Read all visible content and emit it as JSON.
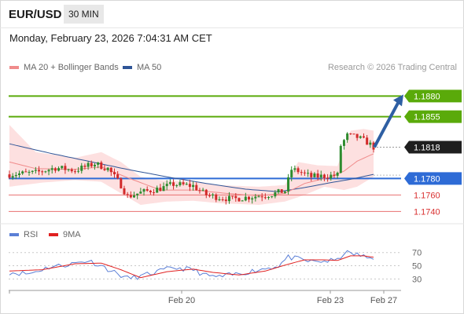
{
  "header": {
    "pair": "EUR/USD",
    "timeframe": "30 MIN",
    "datetime": "Monday, February 23, 2026 7:04:31 AM CET"
  },
  "legend": {
    "ma20": "MA 20 + Bollinger Bands",
    "ma50": "MA 50",
    "credit": "Research © 2026 Trading Central",
    "rsi": "RSI",
    "rsi_ma": "9MA"
  },
  "colors": {
    "ma20": "#f08b8b",
    "ma50": "#2f5597",
    "resistance": "#5aaa0a",
    "pivot": "#2e6bd6",
    "support": "#e87070",
    "candle_up": "#2e8b2e",
    "candle_down": "#d22a2a",
    "band_fill": "#fde0e0",
    "arrow": "#2e5fa3",
    "rsi": "#5b7fd6",
    "rsi_ma": "#e02020"
  },
  "chart_data": {
    "type": "candlestick",
    "ylim": [
      1.1728,
      1.1906
    ],
    "current_price": "1.1818",
    "levels": [
      {
        "kind": "resistance",
        "value": 1.188,
        "label": "1.1880"
      },
      {
        "kind": "resistance",
        "value": 1.1855,
        "label": "1.1855"
      },
      {
        "kind": "pivot",
        "value": 1.178,
        "label": "1.1780"
      },
      {
        "kind": "support",
        "value": 1.176,
        "label": "1.1760"
      },
      {
        "kind": "support",
        "value": 1.174,
        "label": "1.1740"
      }
    ],
    "x_ticks": [
      "Feb 20",
      "Feb 23",
      "Feb 27"
    ],
    "n_candles": 112,
    "price_anchors": [
      [
        0,
        1.1785
      ],
      [
        8,
        1.1787
      ],
      [
        14,
        1.1793
      ],
      [
        20,
        1.179
      ],
      [
        26,
        1.1798
      ],
      [
        30,
        1.1792
      ],
      [
        34,
        1.1772
      ],
      [
        36,
        1.1758
      ],
      [
        40,
        1.1763
      ],
      [
        46,
        1.1768
      ],
      [
        50,
        1.1773
      ],
      [
        56,
        1.1771
      ],
      [
        60,
        1.176
      ],
      [
        64,
        1.1757
      ],
      [
        68,
        1.1755
      ],
      [
        74,
        1.1758
      ],
      [
        80,
        1.1761
      ],
      [
        84,
        1.1765
      ],
      [
        86,
        1.1791
      ],
      [
        88,
        1.1789
      ],
      [
        92,
        1.1782
      ],
      [
        96,
        1.1783
      ],
      [
        100,
        1.1784
      ],
      [
        101,
        1.182
      ],
      [
        103,
        1.1832
      ],
      [
        106,
        1.183
      ],
      [
        109,
        1.1824
      ],
      [
        111,
        1.1818
      ]
    ],
    "bollinger_upper_anchors": [
      [
        0,
        1.1845
      ],
      [
        8,
        1.1812
      ],
      [
        20,
        1.1805
      ],
      [
        28,
        1.1812
      ],
      [
        34,
        1.18
      ],
      [
        40,
        1.1782
      ],
      [
        46,
        1.1778
      ],
      [
        56,
        1.1776
      ],
      [
        64,
        1.1772
      ],
      [
        76,
        1.177
      ],
      [
        84,
        1.1772
      ],
      [
        88,
        1.18
      ],
      [
        94,
        1.1796
      ],
      [
        100,
        1.1795
      ],
      [
        104,
        1.1838
      ],
      [
        108,
        1.184
      ],
      [
        111,
        1.1838
      ]
    ],
    "bollinger_lower_anchors": [
      [
        0,
        1.177
      ],
      [
        10,
        1.1775
      ],
      [
        20,
        1.1778
      ],
      [
        28,
        1.1776
      ],
      [
        34,
        1.1762
      ],
      [
        40,
        1.1748
      ],
      [
        48,
        1.1752
      ],
      [
        56,
        1.1753
      ],
      [
        64,
        1.175
      ],
      [
        76,
        1.1748
      ],
      [
        84,
        1.1752
      ],
      [
        90,
        1.176
      ],
      [
        96,
        1.177
      ],
      [
        102,
        1.1766
      ],
      [
        106,
        1.177
      ],
      [
        111,
        1.1782
      ]
    ],
    "ma20_anchors": [
      [
        0,
        1.18
      ],
      [
        8,
        1.1792
      ],
      [
        20,
        1.1791
      ],
      [
        28,
        1.1794
      ],
      [
        36,
        1.1781
      ],
      [
        46,
        1.1766
      ],
      [
        56,
        1.1766
      ],
      [
        66,
        1.1762
      ],
      [
        76,
        1.1759
      ],
      [
        84,
        1.1762
      ],
      [
        90,
        1.1774
      ],
      [
        98,
        1.1782
      ],
      [
        102,
        1.1789
      ],
      [
        106,
        1.1801
      ],
      [
        111,
        1.181
      ]
    ],
    "ma50_anchors": [
      [
        0,
        1.1822
      ],
      [
        12,
        1.1811
      ],
      [
        24,
        1.1801
      ],
      [
        36,
        1.1791
      ],
      [
        48,
        1.1782
      ],
      [
        60,
        1.1774
      ],
      [
        72,
        1.1767
      ],
      [
        82,
        1.1764
      ],
      [
        90,
        1.1769
      ],
      [
        98,
        1.1775
      ],
      [
        104,
        1.1779
      ],
      [
        111,
        1.1785
      ]
    ],
    "projection": {
      "from": 1.1818,
      "to": 1.188
    },
    "rsi": {
      "ylim": [
        15,
        78
      ],
      "levels": [
        70,
        50,
        30
      ],
      "tick_labels": [
        "70",
        "50",
        "30"
      ],
      "rsi_anchors": [
        [
          0,
          40
        ],
        [
          6,
          38
        ],
        [
          12,
          48
        ],
        [
          18,
          52
        ],
        [
          24,
          58
        ],
        [
          28,
          50
        ],
        [
          32,
          40
        ],
        [
          36,
          31
        ],
        [
          40,
          34
        ],
        [
          46,
          42
        ],
        [
          50,
          47
        ],
        [
          56,
          44
        ],
        [
          60,
          35
        ],
        [
          64,
          33
        ],
        [
          70,
          38
        ],
        [
          76,
          44
        ],
        [
          82,
          50
        ],
        [
          85,
          63
        ],
        [
          88,
          60
        ],
        [
          92,
          56
        ],
        [
          96,
          57
        ],
        [
          100,
          58
        ],
        [
          102,
          70
        ],
        [
          106,
          67
        ],
        [
          109,
          62
        ],
        [
          111,
          62
        ]
      ],
      "ma_anchors": [
        [
          0,
          42
        ],
        [
          10,
          44
        ],
        [
          20,
          53
        ],
        [
          28,
          54
        ],
        [
          34,
          44
        ],
        [
          40,
          32
        ],
        [
          48,
          41
        ],
        [
          56,
          45
        ],
        [
          62,
          40
        ],
        [
          70,
          36
        ],
        [
          78,
          42
        ],
        [
          84,
          51
        ],
        [
          90,
          59
        ],
        [
          96,
          59
        ],
        [
          100,
          58
        ],
        [
          104,
          65
        ],
        [
          108,
          65
        ],
        [
          111,
          63
        ]
      ]
    }
  }
}
